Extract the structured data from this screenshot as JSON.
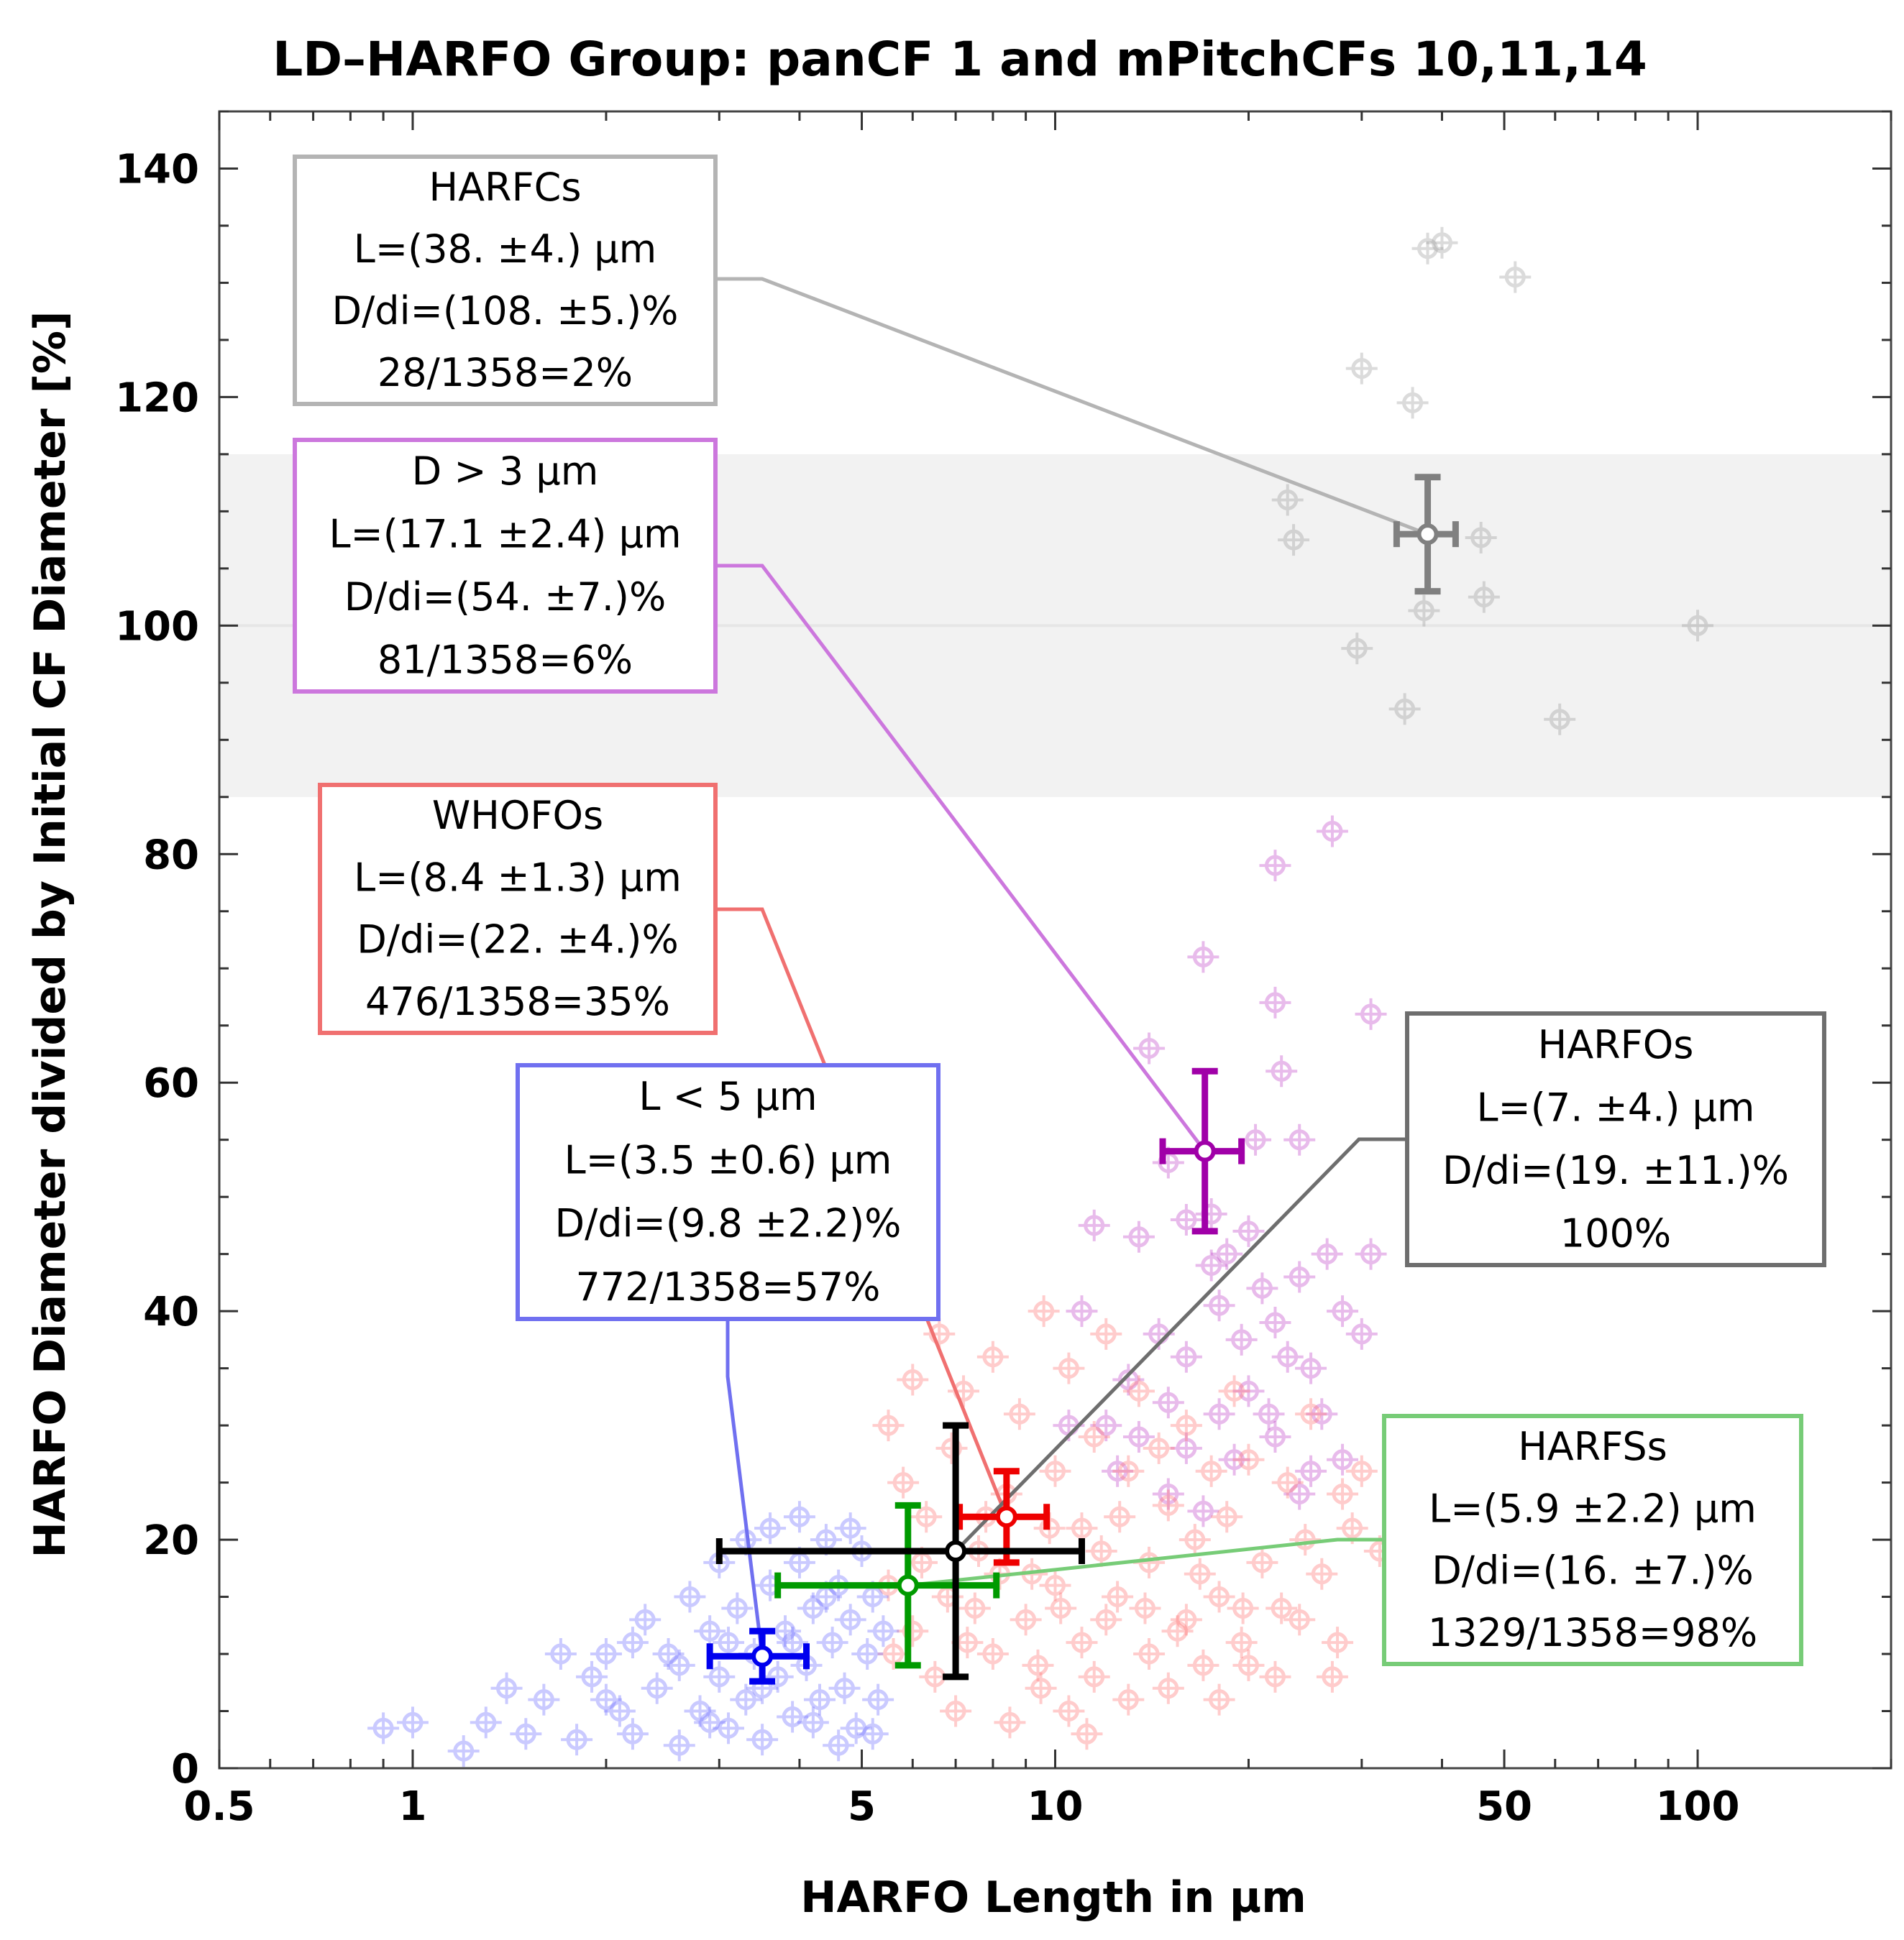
{
  "chart_data": {
    "type": "scatter",
    "title": "LD–HARFO Group: panCF 1 and mPitchCFs 10,11,14",
    "xlabel": "HARFO Length in µm",
    "ylabel": "HARFO Diameter divided by Initial CF Diameter [%]",
    "x_scale": "log",
    "xlim": [
      0.5,
      200
    ],
    "ylim": [
      0,
      145
    ],
    "x_tick_labels": [
      "0.5",
      "1",
      "5",
      "10",
      "50",
      "100"
    ],
    "x_tick_values": [
      0.5,
      1,
      5,
      10,
      50,
      100
    ],
    "y_tick_labels": [
      "0",
      "20",
      "40",
      "60",
      "80",
      "100",
      "120",
      "140"
    ],
    "y_tick_values": [
      0,
      20,
      40,
      60,
      80,
      100,
      120,
      140
    ],
    "reference_band": {
      "y_low": 85,
      "y_high": 115,
      "color": "#f2f2f2"
    },
    "reference_line_y": 100,
    "grid": false,
    "series": [
      {
        "key": "harfcs",
        "color": "#999999",
        "points": [
          [
            38,
            133
          ],
          [
            40,
            133.5
          ],
          [
            52,
            130.5
          ],
          [
            30,
            122.5
          ],
          [
            36,
            119.5
          ],
          [
            23,
            111
          ],
          [
            23.5,
            107.5
          ],
          [
            46,
            107.7
          ],
          [
            37.5,
            101.3
          ],
          [
            46.5,
            102.5
          ],
          [
            29.5,
            98
          ],
          [
            35,
            92.7
          ],
          [
            61,
            91.8
          ],
          [
            100,
            100
          ]
        ]
      },
      {
        "key": "d_gt_3",
        "color": "#c040c8",
        "points": [
          [
            27,
            82
          ],
          [
            22,
            79
          ],
          [
            31,
            66
          ],
          [
            17,
            71
          ],
          [
            14,
            63
          ],
          [
            15,
            53
          ],
          [
            22,
            67
          ],
          [
            22.5,
            61
          ],
          [
            20.5,
            55
          ],
          [
            24,
            55
          ],
          [
            17.5,
            48.5
          ],
          [
            16,
            48
          ],
          [
            20,
            47
          ],
          [
            21,
            42
          ],
          [
            24,
            43
          ],
          [
            18.5,
            45
          ],
          [
            26.5,
            45
          ],
          [
            31,
            45
          ],
          [
            13.5,
            46.5
          ],
          [
            17.5,
            44
          ],
          [
            18,
            40.5
          ],
          [
            19.5,
            37.5
          ],
          [
            22,
            39
          ],
          [
            23,
            36
          ],
          [
            21.5,
            31
          ],
          [
            25,
            35
          ],
          [
            28,
            40
          ],
          [
            30,
            38
          ],
          [
            14.5,
            38
          ],
          [
            16,
            36
          ],
          [
            20,
            33
          ],
          [
            11.5,
            47.5
          ],
          [
            11,
            40
          ],
          [
            13,
            34
          ],
          [
            15,
            32
          ],
          [
            18,
            31
          ],
          [
            22,
            29
          ],
          [
            19,
            27
          ],
          [
            16,
            28
          ],
          [
            13.5,
            29
          ],
          [
            12,
            30
          ],
          [
            10.5,
            30
          ],
          [
            25,
            26
          ],
          [
            28,
            27
          ],
          [
            24,
            24
          ],
          [
            26,
            31
          ],
          [
            12.5,
            26
          ],
          [
            15,
            24
          ],
          [
            17,
            22.5
          ]
        ]
      },
      {
        "key": "whofos",
        "color": "#ff7070",
        "points": [
          [
            5.5,
            30
          ],
          [
            5.8,
            25
          ],
          [
            6,
            34
          ],
          [
            6.3,
            22
          ],
          [
            6.6,
            38
          ],
          [
            6.9,
            28
          ],
          [
            7.2,
            33
          ],
          [
            7.6,
            19
          ],
          [
            8,
            36
          ],
          [
            8.4,
            24
          ],
          [
            8.8,
            31
          ],
          [
            9.2,
            17
          ],
          [
            9.6,
            40
          ],
          [
            10,
            26
          ],
          [
            10.5,
            35
          ],
          [
            11,
            21
          ],
          [
            11.5,
            29
          ],
          [
            12,
            38
          ],
          [
            12.5,
            15
          ],
          [
            13,
            26
          ],
          [
            13.5,
            33
          ],
          [
            14,
            18
          ],
          [
            14.5,
            28
          ],
          [
            15,
            23
          ],
          [
            15.5,
            12
          ],
          [
            16,
            30
          ],
          [
            16.5,
            20
          ],
          [
            17,
            9
          ],
          [
            17.5,
            26
          ],
          [
            18,
            15
          ],
          [
            18.5,
            22
          ],
          [
            19,
            33
          ],
          [
            19.5,
            11
          ],
          [
            20,
            27
          ],
          [
            21,
            18
          ],
          [
            22,
            8
          ],
          [
            23,
            25
          ],
          [
            24,
            13
          ],
          [
            25,
            31
          ],
          [
            26,
            17
          ],
          [
            27,
            8
          ],
          [
            28,
            24
          ],
          [
            29,
            21
          ],
          [
            30,
            26
          ],
          [
            32,
            19
          ],
          [
            6,
            12
          ],
          [
            6.5,
            8
          ],
          [
            7,
            5
          ],
          [
            7.5,
            14
          ],
          [
            8,
            10
          ],
          [
            8.5,
            4
          ],
          [
            9,
            13
          ],
          [
            9.5,
            7
          ],
          [
            10,
            16
          ],
          [
            10.5,
            5
          ],
          [
            11,
            11
          ],
          [
            11.5,
            8
          ],
          [
            12,
            13
          ],
          [
            13,
            6
          ],
          [
            14,
            10
          ],
          [
            15,
            7
          ],
          [
            16,
            13
          ],
          [
            18,
            6
          ],
          [
            20,
            9
          ],
          [
            6.2,
            18
          ],
          [
            7.8,
            22
          ],
          [
            9.8,
            21
          ],
          [
            11.8,
            19
          ],
          [
            5.5,
            16
          ],
          [
            6.8,
            15
          ],
          [
            8.2,
            17
          ],
          [
            10.2,
            14
          ],
          [
            12.6,
            22
          ],
          [
            5.6,
            10
          ],
          [
            7.3,
            11
          ],
          [
            9.4,
            9
          ],
          [
            11.2,
            3
          ],
          [
            13.8,
            14
          ],
          [
            16.8,
            17
          ],
          [
            19.6,
            14
          ],
          [
            22.5,
            14
          ],
          [
            24.5,
            20
          ],
          [
            27.5,
            11
          ]
        ]
      },
      {
        "key": "l_lt_5",
        "color": "#6a6aff",
        "points": [
          [
            1.2,
            1.5
          ],
          [
            1.3,
            4
          ],
          [
            1.5,
            3
          ],
          [
            1.6,
            6
          ],
          [
            1.8,
            2.5
          ],
          [
            1.9,
            8
          ],
          [
            2.1,
            5
          ],
          [
            2.2,
            3
          ],
          [
            2.4,
            7
          ],
          [
            2.5,
            10
          ],
          [
            2.6,
            2
          ],
          [
            2.8,
            5
          ],
          [
            2.9,
            12
          ],
          [
            3.0,
            8
          ],
          [
            3.1,
            3.5
          ],
          [
            3.2,
            14
          ],
          [
            3.3,
            6
          ],
          [
            3.4,
            10
          ],
          [
            3.5,
            2.5
          ],
          [
            3.6,
            16
          ],
          [
            3.7,
            8
          ],
          [
            3.8,
            12
          ],
          [
            3.9,
            4.5
          ],
          [
            4.0,
            18
          ],
          [
            4.1,
            9
          ],
          [
            4.2,
            14
          ],
          [
            4.3,
            6
          ],
          [
            4.4,
            20
          ],
          [
            4.5,
            11
          ],
          [
            4.6,
            16
          ],
          [
            4.7,
            7
          ],
          [
            4.8,
            13
          ],
          [
            4.9,
            3.5
          ],
          [
            5.0,
            19
          ],
          [
            5.1,
            10
          ],
          [
            5.2,
            15
          ],
          [
            5.3,
            6
          ],
          [
            5.4,
            12
          ],
          [
            2.0,
            10
          ],
          [
            2.3,
            13
          ],
          [
            2.7,
            15
          ],
          [
            3.0,
            18
          ],
          [
            3.3,
            20
          ],
          [
            3.6,
            21
          ],
          [
            4.0,
            22
          ],
          [
            4.4,
            15
          ],
          [
            4.8,
            21
          ],
          [
            1.4,
            7
          ],
          [
            1.7,
            10
          ],
          [
            2.0,
            6
          ],
          [
            2.6,
            9
          ],
          [
            2.9,
            4
          ],
          [
            3.5,
            7
          ],
          [
            4.2,
            4
          ],
          [
            4.6,
            2
          ],
          [
            5.2,
            3
          ],
          [
            3.9,
            11
          ],
          [
            3.1,
            11
          ],
          [
            2.2,
            11
          ],
          [
            1.0,
            4
          ],
          [
            0.9,
            3.5
          ]
        ]
      }
    ],
    "summary_points": [
      {
        "key": "harfcs_mean",
        "color": "#808080",
        "x": 38,
        "x_err": 4,
        "y": 108,
        "y_err": 5
      },
      {
        "key": "d_gt_3_mean",
        "color": "#a000a8",
        "x": 17.1,
        "x_err": 2.4,
        "y": 54,
        "y_err": 7
      },
      {
        "key": "whofos_mean",
        "color": "#ee0000",
        "x": 8.4,
        "x_err": 1.3,
        "y": 22,
        "y_err": 4
      },
      {
        "key": "harfss_mean",
        "color": "#009a00",
        "x": 5.9,
        "x_err": 2.2,
        "y": 16,
        "y_err": 7
      },
      {
        "key": "harfos_mean",
        "color": "#000000",
        "x": 7,
        "x_err": 4,
        "y": 19,
        "y_err": 11
      },
      {
        "key": "l_lt_5_mean",
        "color": "#0000ee",
        "x": 3.5,
        "x_err": 0.6,
        "y": 9.8,
        "y_err": 2.2
      }
    ],
    "annotations": [
      {
        "key": "harfcs",
        "color": "#b4b4b4",
        "lines": [
          "HARFCs",
          "L=(38. ±4.) µm",
          "D/di=(108. ±5.)%",
          "28/1358=2%"
        ],
        "target": [
          38,
          108
        ]
      },
      {
        "key": "d_gt_3",
        "color": "#cc77dd",
        "lines": [
          "D > 3 µm",
          "L=(17.1 ±2.4) µm",
          "D/di=(54. ±7.)%",
          "81/1358=6%"
        ],
        "target": [
          17.1,
          54
        ]
      },
      {
        "key": "whofos",
        "color": "#f07070",
        "lines": [
          "WHOFOs",
          "L=(8.4 ±1.3) µm",
          "D/di=(22. ±4.)%",
          "476/1358=35%"
        ],
        "target": [
          8.4,
          22
        ]
      },
      {
        "key": "l_lt_5",
        "color": "#7070f0",
        "lines": [
          "L < 5 µm",
          "L=(3.5 ±0.6) µm",
          "D/di=(9.8 ±2.2)%",
          "772/1358=57%"
        ],
        "target": [
          3.5,
          9.8
        ]
      },
      {
        "key": "harfos",
        "color": "#6e6e6e",
        "lines": [
          "HARFOs",
          "L=(7. ±4.) µm",
          "D/di=(19. ±11.)%",
          "100%"
        ],
        "target": [
          7,
          19
        ]
      },
      {
        "key": "harfss",
        "color": "#77cc77",
        "lines": [
          "HARFSs",
          "L=(5.9 ±2.2) µm",
          "D/di=(16. ±7.)%",
          "1329/1358=98%"
        ],
        "target": [
          5.9,
          16
        ]
      }
    ]
  }
}
